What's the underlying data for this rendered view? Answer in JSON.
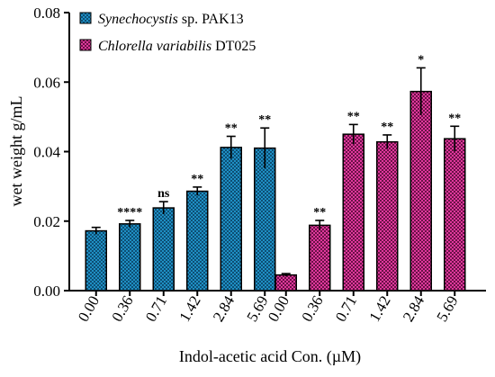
{
  "chart_data": {
    "type": "bar",
    "xlabel": "Indol-acetic acid Con. (µM)",
    "ylabel": "wet weight g/mL",
    "ylim": [
      0,
      0.08
    ],
    "yticks": [
      "0.00",
      "0.02",
      "0.04",
      "0.06",
      "0.08"
    ],
    "grid": false,
    "legend_position": "top-left",
    "series": [
      {
        "name_italic": "Synechocystis",
        "name_rest": " sp. PAK13",
        "color": "#1f8fc4",
        "categories": [
          "0.00",
          "0.36",
          "0.71",
          "1.42",
          "2.84",
          "5.69"
        ],
        "values": [
          0.0172,
          0.0192,
          0.0238,
          0.0286,
          0.0412,
          0.041
        ],
        "errors": [
          0.001,
          0.001,
          0.0018,
          0.0012,
          0.0032,
          0.0058
        ],
        "significance": [
          "",
          "****",
          "ns",
          "**",
          "**",
          "**"
        ]
      },
      {
        "name_italic": "Chlorella variabilis",
        "name_rest": " DT025",
        "color": "#e0389c",
        "categories": [
          "0.00",
          "0.36",
          "0.71",
          "1.42",
          "2.84",
          "5.69"
        ],
        "values": [
          0.0045,
          0.0188,
          0.045,
          0.0428,
          0.0573,
          0.0437
        ],
        "errors": [
          0.0004,
          0.0014,
          0.0028,
          0.002,
          0.0068,
          0.0036
        ],
        "significance": [
          "",
          "**",
          "**",
          "**",
          "*",
          "**"
        ]
      }
    ]
  }
}
